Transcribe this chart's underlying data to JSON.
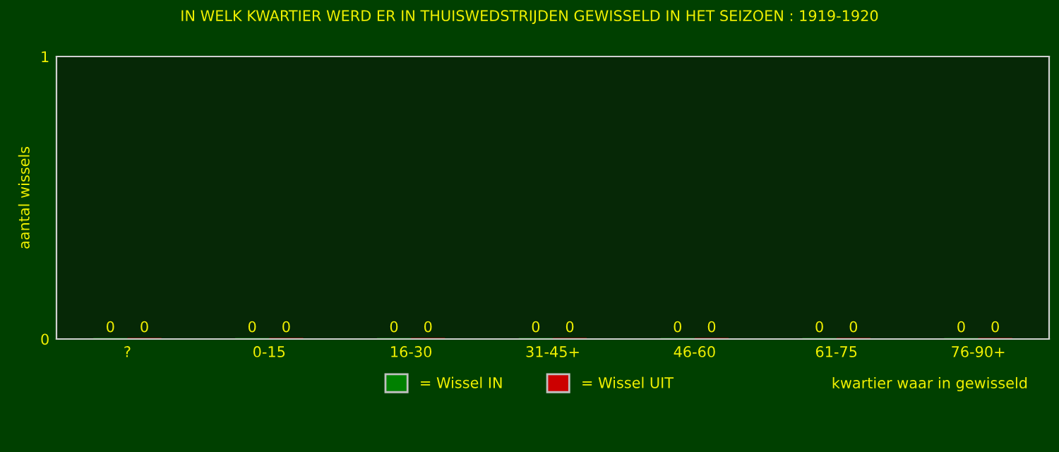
{
  "chart_data": {
    "type": "bar",
    "title": "IN WELK KWARTIER WERD ER IN THUISWEDSTRIJDEN GEWISSELD IN HET SEIZOEN : 1919-1920",
    "xlabel": "kwartier waar in gewisseld",
    "ylabel": "aantal wissels",
    "categories": [
      "?",
      "0-15",
      "16-30",
      "31-45+",
      "46-60",
      "61-75",
      "76-90+"
    ],
    "series": [
      {
        "name": "= Wissel IN",
        "color": "#008000",
        "values": [
          0,
          0,
          0,
          0,
          0,
          0,
          0
        ]
      },
      {
        "name": "= Wissel UIT",
        "color": "#cc0000",
        "values": [
          0,
          0,
          0,
          0,
          0,
          0,
          0
        ]
      }
    ],
    "ylim": [
      0,
      1
    ],
    "yticks": [
      0,
      1
    ],
    "data_labels": true,
    "grid": false,
    "legend": "bottom"
  }
}
